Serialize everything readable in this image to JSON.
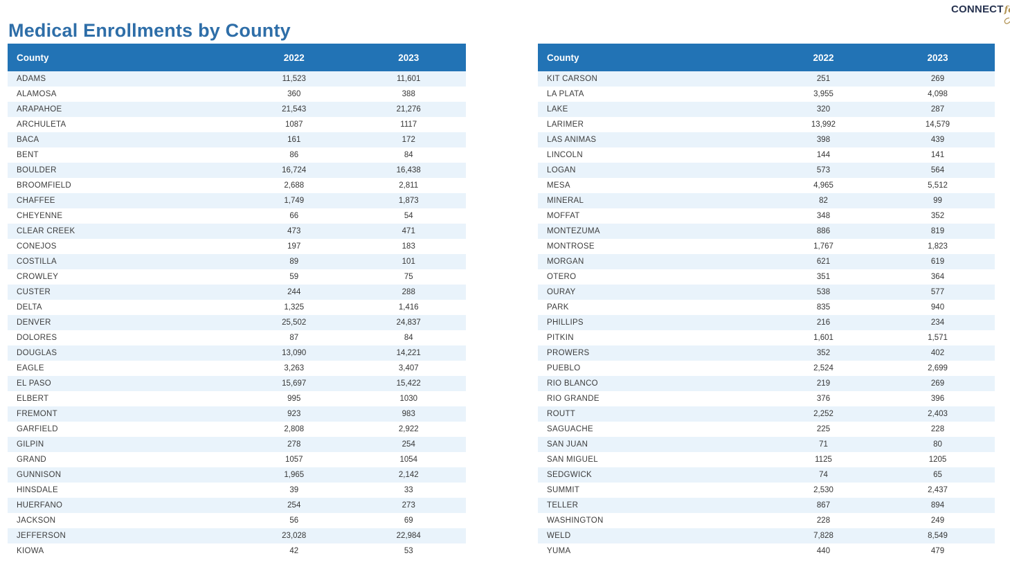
{
  "page_title": "Medical Enrollments by County",
  "logo": {
    "main_text": "CONNECT",
    "script_text": "for",
    "partial_text": "H",
    "navy_color": "#273350",
    "gold_color": "#b29455"
  },
  "colors": {
    "title_blue": "#2e6ea8",
    "header_blue": "#2273b5",
    "row_stripe": "#e9f3fb",
    "body_text": "#363636"
  },
  "table_left": {
    "headers": [
      "County",
      "2022",
      "2023"
    ],
    "rows": [
      [
        "ADAMS",
        "11,523",
        "11,601"
      ],
      [
        "ALAMOSA",
        "360",
        "388"
      ],
      [
        "ARAPAHOE",
        "21,543",
        "21,276"
      ],
      [
        "ARCHULETA",
        "1087",
        "1117"
      ],
      [
        "BACA",
        "161",
        "172"
      ],
      [
        "BENT",
        "86",
        "84"
      ],
      [
        "BOULDER",
        "16,724",
        "16,438"
      ],
      [
        "BROOMFIELD",
        "2,688",
        "2,811"
      ],
      [
        "CHAFFEE",
        "1,749",
        "1,873"
      ],
      [
        "CHEYENNE",
        "66",
        "54"
      ],
      [
        "CLEAR CREEK",
        "473",
        "471"
      ],
      [
        "CONEJOS",
        "197",
        "183"
      ],
      [
        "COSTILLA",
        "89",
        "101"
      ],
      [
        "CROWLEY",
        "59",
        "75"
      ],
      [
        "CUSTER",
        "244",
        "288"
      ],
      [
        "DELTA",
        "1,325",
        "1,416"
      ],
      [
        "DENVER",
        "25,502",
        "24,837"
      ],
      [
        "DOLORES",
        "87",
        "84"
      ],
      [
        "DOUGLAS",
        "13,090",
        "14,221"
      ],
      [
        "EAGLE",
        "3,263",
        "3,407"
      ],
      [
        "EL PASO",
        "15,697",
        "15,422"
      ],
      [
        "ELBERT",
        "995",
        "1030"
      ],
      [
        "FREMONT",
        "923",
        "983"
      ],
      [
        "GARFIELD",
        "2,808",
        "2,922"
      ],
      [
        "GILPIN",
        "278",
        "254"
      ],
      [
        "GRAND",
        "1057",
        "1054"
      ],
      [
        "GUNNISON",
        "1,965",
        "2,142"
      ],
      [
        "HINSDALE",
        "39",
        "33"
      ],
      [
        "HUERFANO",
        "254",
        "273"
      ],
      [
        "JACKSON",
        "56",
        "69"
      ],
      [
        "JEFFERSON",
        "23,028",
        "22,984"
      ],
      [
        "KIOWA",
        "42",
        "53"
      ]
    ]
  },
  "table_right": {
    "headers": [
      "County",
      "2022",
      "2023"
    ],
    "rows": [
      [
        "KIT CARSON",
        "251",
        "269"
      ],
      [
        "LA PLATA",
        "3,955",
        "4,098"
      ],
      [
        "LAKE",
        "320",
        "287"
      ],
      [
        "LARIMER",
        "13,992",
        "14,579"
      ],
      [
        "LAS ANIMAS",
        "398",
        "439"
      ],
      [
        "LINCOLN",
        "144",
        "141"
      ],
      [
        "LOGAN",
        "573",
        "564"
      ],
      [
        "MESA",
        "4,965",
        "5,512"
      ],
      [
        "MINERAL",
        "82",
        "99"
      ],
      [
        "MOFFAT",
        "348",
        "352"
      ],
      [
        "MONTEZUMA",
        "886",
        "819"
      ],
      [
        "MONTROSE",
        "1,767",
        "1,823"
      ],
      [
        "MORGAN",
        "621",
        "619"
      ],
      [
        "OTERO",
        "351",
        "364"
      ],
      [
        "OURAY",
        "538",
        "577"
      ],
      [
        "PARK",
        "835",
        "940"
      ],
      [
        "PHILLIPS",
        "216",
        "234"
      ],
      [
        "PITKIN",
        "1,601",
        "1,571"
      ],
      [
        "PROWERS",
        "352",
        "402"
      ],
      [
        "PUEBLO",
        "2,524",
        "2,699"
      ],
      [
        "RIO BLANCO",
        "219",
        "269"
      ],
      [
        "RIO GRANDE",
        "376",
        "396"
      ],
      [
        "ROUTT",
        "2,252",
        "2,403"
      ],
      [
        "SAGUACHE",
        "225",
        "228"
      ],
      [
        "SAN JUAN",
        "71",
        "80"
      ],
      [
        "SAN MIGUEL",
        "1125",
        "1205"
      ],
      [
        "SEDGWICK",
        "74",
        "65"
      ],
      [
        "SUMMIT",
        "2,530",
        "2,437"
      ],
      [
        "TELLER",
        "867",
        "894"
      ],
      [
        "WASHINGTON",
        "228",
        "249"
      ],
      [
        "WELD",
        "7,828",
        "8,549"
      ],
      [
        "YUMA",
        "440",
        "479"
      ]
    ]
  }
}
